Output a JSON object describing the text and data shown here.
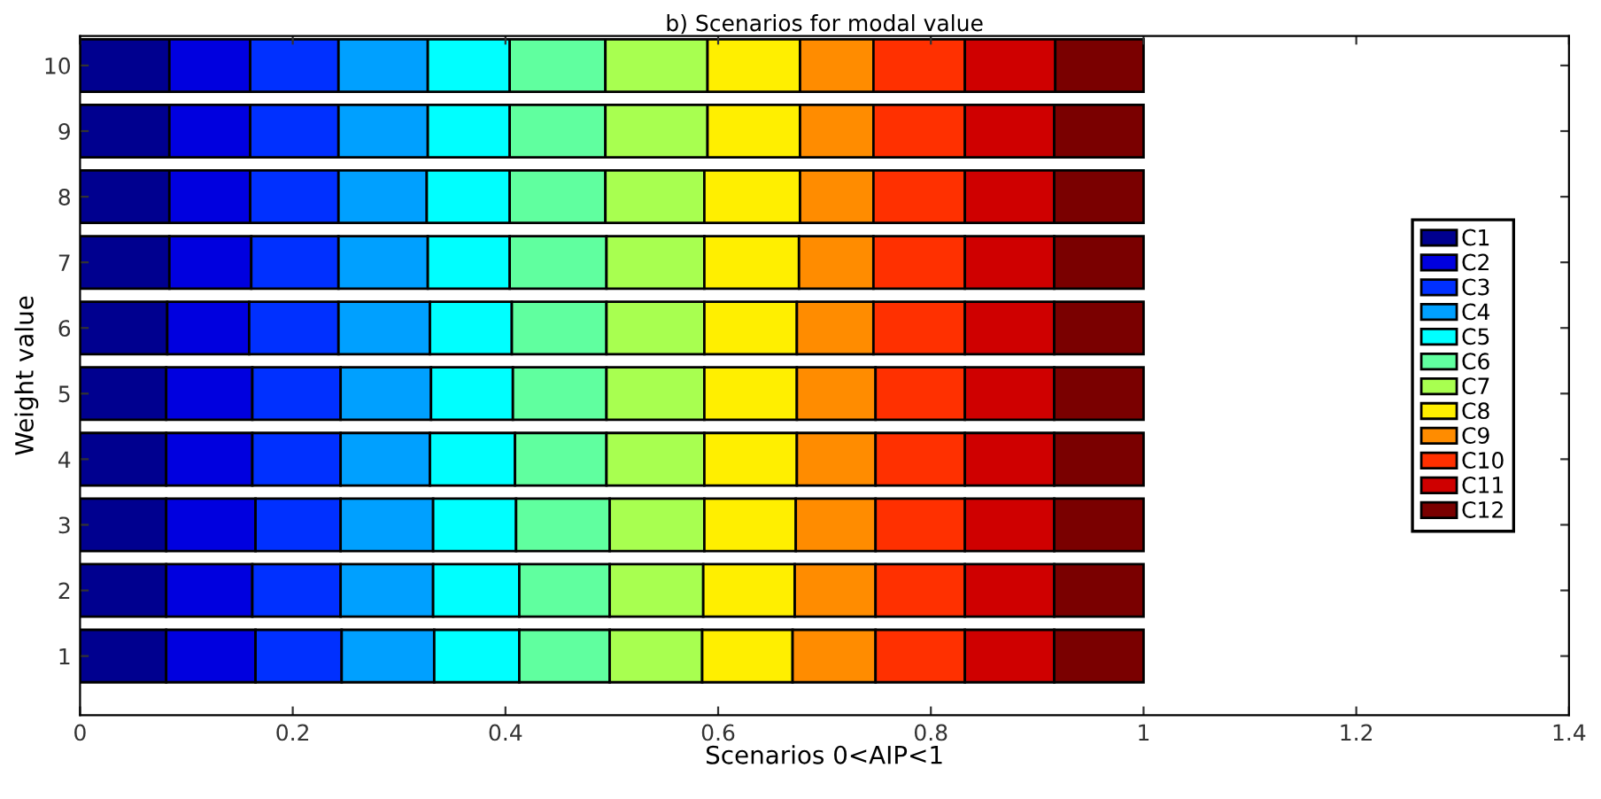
{
  "chart_data": {
    "type": "bar",
    "orientation": "horizontal",
    "stacked": true,
    "title": "b) Scenarios for modal value",
    "xlabel": "Scenarios 0<AIP<1",
    "ylabel": "Weight value",
    "categories": [
      "10",
      "9",
      "8",
      "7",
      "6",
      "5",
      "4",
      "3",
      "2",
      "1"
    ],
    "xlim": [
      0,
      1.4
    ],
    "xticks": [
      0,
      0.2,
      0.4,
      0.6,
      0.8,
      1,
      1.2,
      1.4
    ],
    "grid": false,
    "legend": "right",
    "series": [
      {
        "name": "C1",
        "color": "#00008f",
        "values": [
          0.084,
          0.084,
          0.084,
          0.084,
          0.082,
          0.081,
          0.081,
          0.081,
          0.081,
          0.081
        ]
      },
      {
        "name": "C2",
        "color": "#0000df",
        "values": [
          0.076,
          0.076,
          0.076,
          0.077,
          0.077,
          0.081,
          0.081,
          0.084,
          0.081,
          0.084
        ]
      },
      {
        "name": "C3",
        "color": "#0030ff",
        "values": [
          0.083,
          0.083,
          0.083,
          0.082,
          0.084,
          0.083,
          0.083,
          0.08,
          0.083,
          0.081
        ]
      },
      {
        "name": "C4",
        "color": "#00a0ff",
        "values": [
          0.084,
          0.084,
          0.083,
          0.084,
          0.086,
          0.085,
          0.084,
          0.087,
          0.087,
          0.087
        ]
      },
      {
        "name": "C5",
        "color": "#00ffff",
        "values": [
          0.077,
          0.077,
          0.078,
          0.077,
          0.077,
          0.077,
          0.08,
          0.078,
          0.081,
          0.08
        ]
      },
      {
        "name": "C6",
        "color": "#60ff9f",
        "values": [
          0.09,
          0.09,
          0.09,
          0.091,
          0.089,
          0.088,
          0.086,
          0.088,
          0.085,
          0.085
        ]
      },
      {
        "name": "C7",
        "color": "#a8ff50",
        "values": [
          0.096,
          0.096,
          0.093,
          0.092,
          0.092,
          0.092,
          0.092,
          0.089,
          0.088,
          0.087
        ]
      },
      {
        "name": "C8",
        "color": "#ffef00",
        "values": [
          0.087,
          0.087,
          0.09,
          0.089,
          0.087,
          0.087,
          0.087,
          0.086,
          0.086,
          0.085
        ]
      },
      {
        "name": "C9",
        "color": "#ff8c00",
        "values": [
          0.069,
          0.069,
          0.069,
          0.07,
          0.072,
          0.074,
          0.074,
          0.075,
          0.076,
          0.078
        ]
      },
      {
        "name": "C10",
        "color": "#ff3000",
        "values": [
          0.086,
          0.086,
          0.086,
          0.086,
          0.086,
          0.084,
          0.084,
          0.084,
          0.084,
          0.084
        ]
      },
      {
        "name": "C11",
        "color": "#cf0000",
        "values": [
          0.085,
          0.084,
          0.084,
          0.084,
          0.084,
          0.084,
          0.084,
          0.084,
          0.084,
          0.084
        ]
      },
      {
        "name": "C12",
        "color": "#7a0000",
        "values": [
          0.083,
          0.084,
          0.084,
          0.084,
          0.084,
          0.084,
          0.084,
          0.084,
          0.084,
          0.084
        ]
      }
    ]
  }
}
